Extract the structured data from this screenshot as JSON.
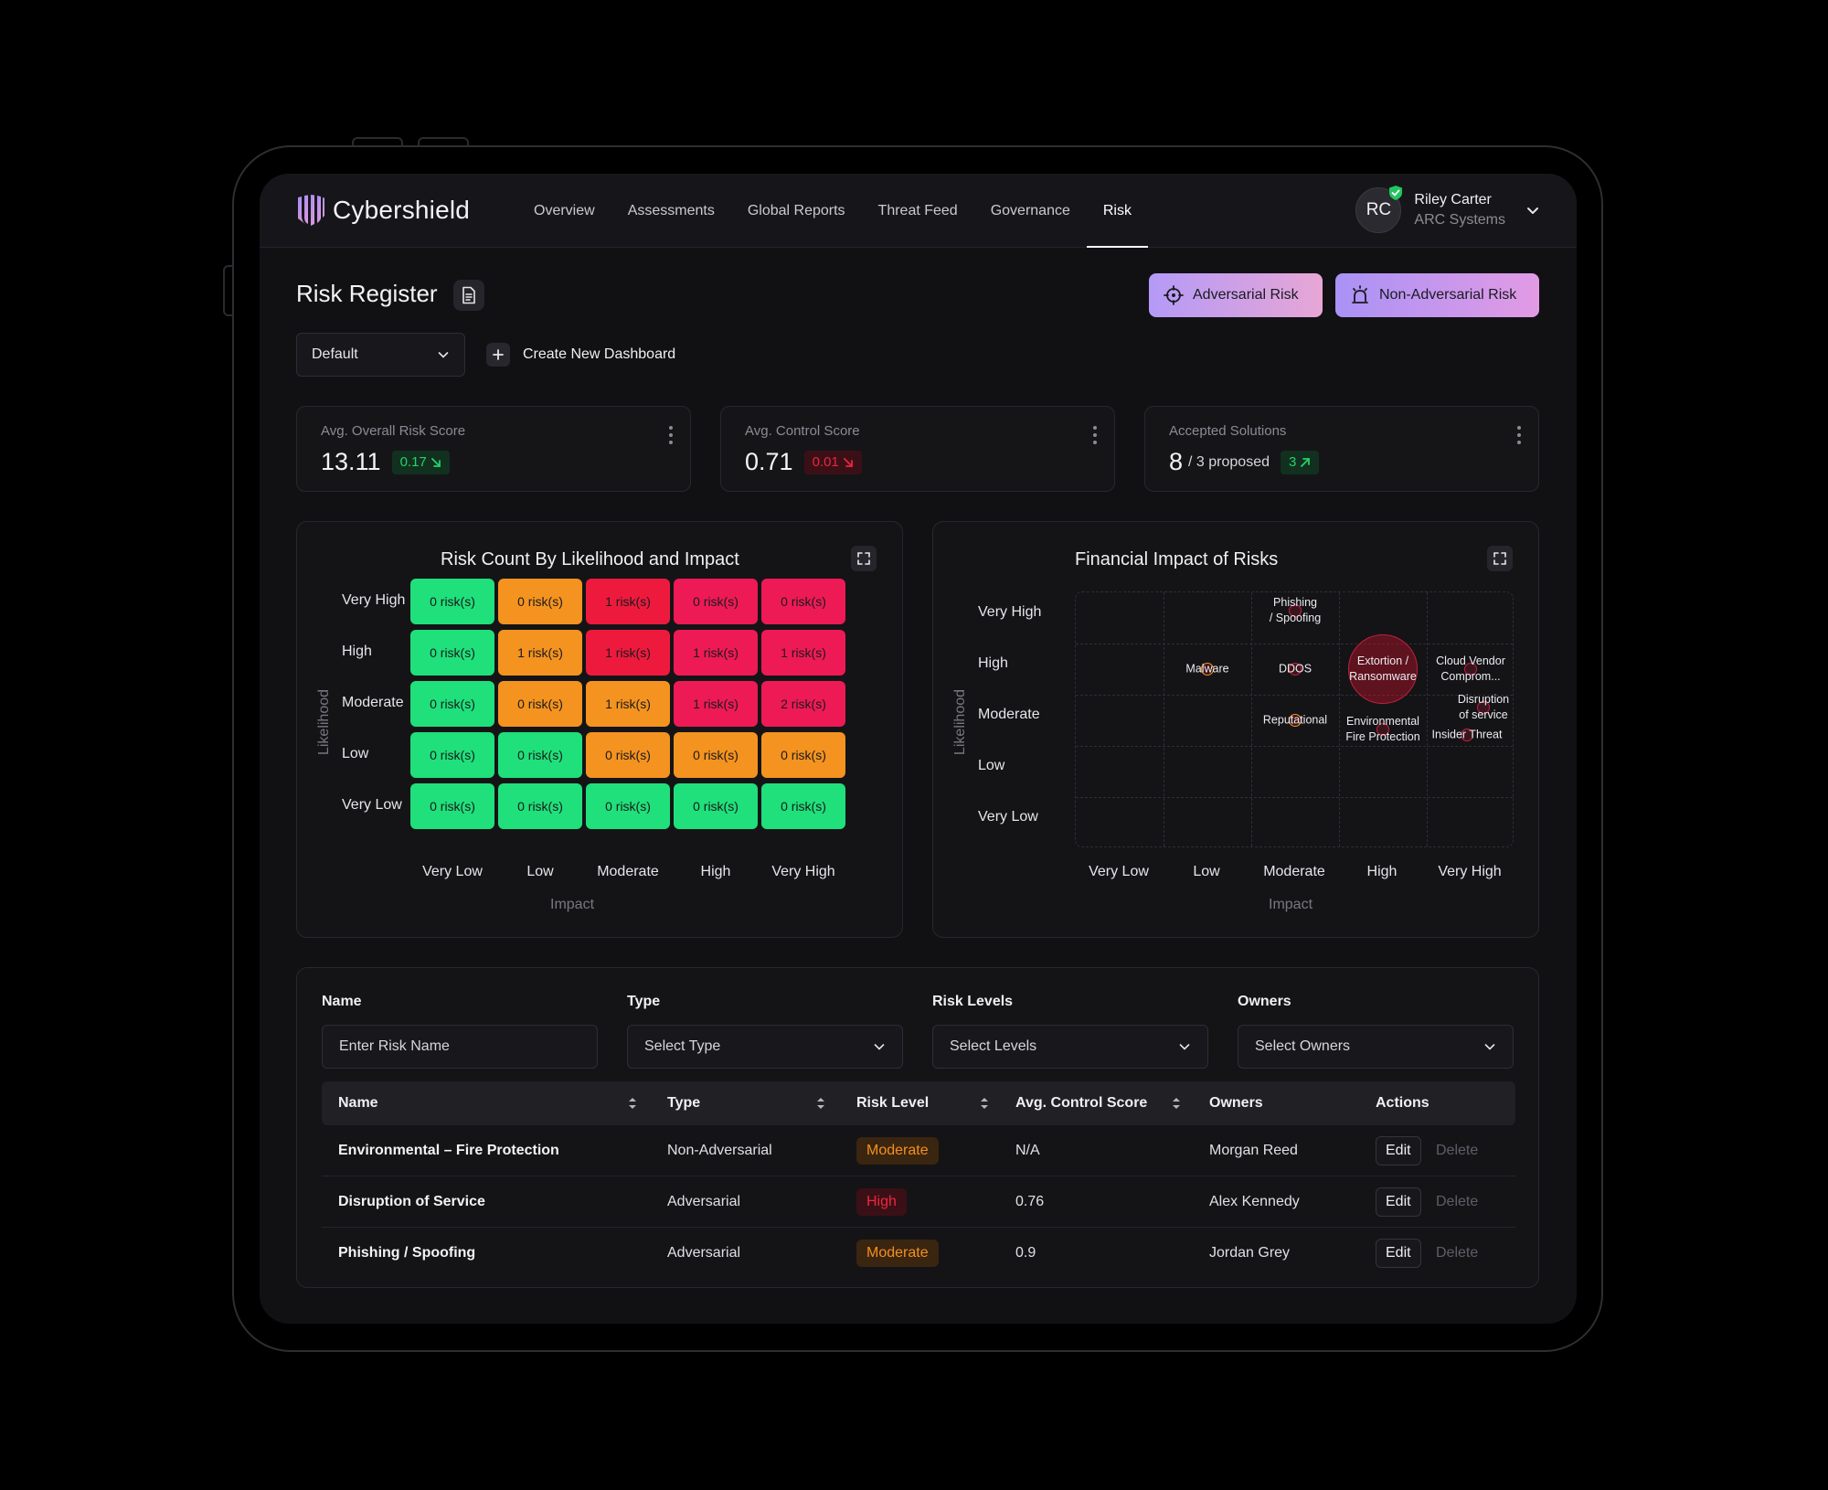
{
  "app": {
    "name": "Cybershield"
  },
  "nav": {
    "items": [
      "Overview",
      "Assessments",
      "Global Reports",
      "Threat Feed",
      "Governance",
      "Risk"
    ],
    "active": "Risk"
  },
  "user": {
    "initials": "RC",
    "name": "Riley Carter",
    "org": "ARC Systems"
  },
  "header": {
    "title": "Risk Register",
    "adversarial_label": "Adversarial Risk",
    "non_adversarial_label": "Non-Adversarial Risk",
    "dashboard_select": "Default",
    "create_dashboard": "Create New Dashboard"
  },
  "stats": [
    {
      "label": "Avg. Overall Risk Score",
      "value": "13.11",
      "sub": "",
      "delta": "0.17",
      "trend": "down",
      "tone": "good"
    },
    {
      "label": "Avg. Control Score",
      "value": "0.71",
      "sub": "",
      "delta": "0.01",
      "trend": "down",
      "tone": "bad"
    },
    {
      "label": "Accepted Solutions",
      "value": "8",
      "sub": "/ 3 proposed",
      "delta": "3",
      "trend": "up",
      "tone": "good"
    }
  ],
  "colors": {
    "green": "#1fe07a",
    "orange": "#f4931f",
    "red": "#ee1a3e",
    "pink": "#ee1a55",
    "bubble_fill": "#e8112d",
    "bubble_ring": "#c02040"
  },
  "chart_data": [
    {
      "type": "heatmap",
      "title": "Risk Count By Likelihood and Impact",
      "xlabel": "Impact",
      "ylabel": "Likelihood",
      "x_categories": [
        "Very Low",
        "Low",
        "Moderate",
        "High",
        "Very High"
      ],
      "y_categories": [
        "Very High",
        "High",
        "Moderate",
        "Low",
        "Very Low"
      ],
      "cell_suffix": " risk(s)",
      "values": [
        [
          0,
          0,
          1,
          0,
          0
        ],
        [
          0,
          1,
          1,
          1,
          1
        ],
        [
          0,
          0,
          1,
          1,
          2
        ],
        [
          0,
          0,
          0,
          0,
          0
        ],
        [
          0,
          0,
          0,
          0,
          0
        ]
      ],
      "cell_colors": [
        [
          "green",
          "orange",
          "red",
          "pink",
          "pink"
        ],
        [
          "green",
          "orange",
          "red",
          "pink",
          "pink"
        ],
        [
          "green",
          "orange",
          "orange",
          "pink",
          "pink"
        ],
        [
          "green",
          "green",
          "orange",
          "orange",
          "orange"
        ],
        [
          "green",
          "green",
          "green",
          "green",
          "green"
        ]
      ]
    },
    {
      "type": "scatter",
      "title": "Financial Impact of Risks",
      "xlabel": "Impact",
      "ylabel": "Likelihood",
      "x_categories": [
        "Very Low",
        "Low",
        "Moderate",
        "High",
        "Very High"
      ],
      "y_categories": [
        "Very High",
        "High",
        "Moderate",
        "Low",
        "Very Low"
      ],
      "points": [
        {
          "name": "Phishing / Spoofing",
          "lines": [
            "Phishing",
            "/ Spoofing"
          ],
          "impact": "Moderate",
          "likelihood": "Very High",
          "size": "small"
        },
        {
          "name": "Malware",
          "lines": [
            "Malware"
          ],
          "impact": "Low",
          "likelihood": "High",
          "size": "small"
        },
        {
          "name": "DDOS",
          "lines": [
            "DDOS"
          ],
          "impact": "Moderate",
          "likelihood": "High",
          "size": "small"
        },
        {
          "name": "Extortion / Ransomware",
          "lines": [
            "Extortion /",
            "Ransomware"
          ],
          "impact": "High",
          "likelihood": "High",
          "size": "large"
        },
        {
          "name": "Cloud Vendor Compromise",
          "lines": [
            "Cloud Vendor",
            "Comprom..."
          ],
          "impact": "Very High",
          "likelihood": "High",
          "size": "small"
        },
        {
          "name": "Reputational",
          "lines": [
            "Reputational"
          ],
          "impact": "Moderate",
          "likelihood": "Moderate",
          "size": "small"
        },
        {
          "name": "Environmental Fire Protection",
          "lines": [
            "Environmental",
            "Fire Protection"
          ],
          "impact": "High",
          "likelihood": "Moderate",
          "size": "small"
        },
        {
          "name": "Disruption of service",
          "lines": [
            "Disruption",
            "of service"
          ],
          "impact": "Very High",
          "likelihood": "Moderate",
          "size": "small"
        },
        {
          "name": "Insider Threat",
          "lines": [
            "Insider Threat"
          ],
          "impact": "Very High",
          "likelihood": "Moderate",
          "size": "small"
        }
      ]
    }
  ],
  "filters": [
    {
      "label": "Name",
      "placeholder": "Enter Risk Name",
      "kind": "input"
    },
    {
      "label": "Type",
      "placeholder": "Select Type",
      "kind": "select"
    },
    {
      "label": "Risk Levels",
      "placeholder": "Select Levels",
      "kind": "select"
    },
    {
      "label": "Owners",
      "placeholder": "Select Owners",
      "kind": "select"
    }
  ],
  "table": {
    "headers": [
      "Name",
      "Type",
      "Risk Level",
      "Avg. Control Score",
      "Owners",
      "Actions"
    ],
    "rows": [
      {
        "name": "Environmental – Fire Protection",
        "type": "Non-Adversarial",
        "level": "Moderate",
        "score": "N/A",
        "owner": "Morgan Reed"
      },
      {
        "name": "Disruption of Service",
        "type": "Adversarial",
        "level": "High",
        "score": "0.76",
        "owner": "Alex Kennedy"
      },
      {
        "name": "Phishing / Spoofing",
        "type": "Adversarial",
        "level": "Moderate",
        "score": "0.9",
        "owner": "Jordan Grey"
      }
    ],
    "edit_label": "Edit",
    "delete_label": "Delete"
  }
}
